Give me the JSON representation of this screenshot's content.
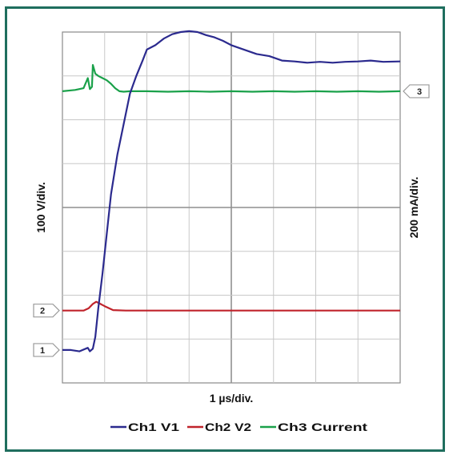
{
  "chart_data": {
    "type": "line",
    "xlabel": "1 µs/div.",
    "ylabel_left": "100 V/div.",
    "ylabel_right": "200 mA/div.",
    "divisions": {
      "x": 8,
      "y": 8
    },
    "xlim": [
      0,
      8
    ],
    "ylim": [
      0,
      8
    ],
    "grid": true,
    "legend_position": "bottom",
    "channel_markers": [
      {
        "label": "1",
        "side": "left",
        "y": 0.75
      },
      {
        "label": "2",
        "side": "left",
        "y": 1.65
      },
      {
        "label": "3",
        "side": "right",
        "y": 6.65
      }
    ],
    "series": [
      {
        "name": "Ch1 V1",
        "color": "#2b2a8e",
        "x": [
          0.0,
          0.2,
          0.4,
          0.6,
          0.65,
          0.72,
          0.78,
          0.85,
          0.95,
          1.05,
          1.15,
          1.3,
          1.45,
          1.6,
          1.75,
          1.9,
          2.0,
          2.2,
          2.4,
          2.6,
          2.8,
          3.0,
          3.2,
          3.4,
          3.6,
          3.8,
          4.0,
          4.3,
          4.6,
          4.9,
          5.2,
          5.5,
          5.8,
          6.1,
          6.4,
          6.7,
          7.0,
          7.3,
          7.6,
          8.0
        ],
        "y": [
          0.75,
          0.75,
          0.72,
          0.8,
          0.72,
          0.78,
          1.05,
          1.7,
          2.5,
          3.4,
          4.3,
          5.2,
          5.9,
          6.6,
          7.0,
          7.35,
          7.6,
          7.7,
          7.85,
          7.95,
          8.0,
          8.02,
          8.0,
          7.93,
          7.88,
          7.8,
          7.7,
          7.6,
          7.5,
          7.45,
          7.35,
          7.33,
          7.3,
          7.32,
          7.3,
          7.32,
          7.33,
          7.35,
          7.32,
          7.33
        ]
      },
      {
        "name": "Ch2 V2",
        "color": "#c0232b",
        "x": [
          0.0,
          0.5,
          0.62,
          0.72,
          0.8,
          0.9,
          1.0,
          1.2,
          1.5,
          2.0,
          3.0,
          4.0,
          5.0,
          6.0,
          7.0,
          8.0
        ],
        "y": [
          1.65,
          1.65,
          1.7,
          1.8,
          1.85,
          1.8,
          1.75,
          1.66,
          1.65,
          1.65,
          1.65,
          1.65,
          1.65,
          1.65,
          1.65,
          1.65
        ]
      },
      {
        "name": "Ch3 Current",
        "color": "#1aa14a",
        "x": [
          0.0,
          0.3,
          0.5,
          0.6,
          0.65,
          0.7,
          0.72,
          0.78,
          0.85,
          0.95,
          1.05,
          1.15,
          1.25,
          1.35,
          1.45,
          1.6,
          2.0,
          2.5,
          3.0,
          3.5,
          4.0,
          4.5,
          5.0,
          5.5,
          6.0,
          6.5,
          7.0,
          7.5,
          8.0
        ],
        "y": [
          6.65,
          6.68,
          6.72,
          6.95,
          6.7,
          6.75,
          7.25,
          7.05,
          7.0,
          6.95,
          6.9,
          6.82,
          6.72,
          6.65,
          6.64,
          6.65,
          6.65,
          6.64,
          6.65,
          6.64,
          6.65,
          6.64,
          6.65,
          6.64,
          6.65,
          6.64,
          6.65,
          6.64,
          6.65
        ]
      }
    ]
  }
}
